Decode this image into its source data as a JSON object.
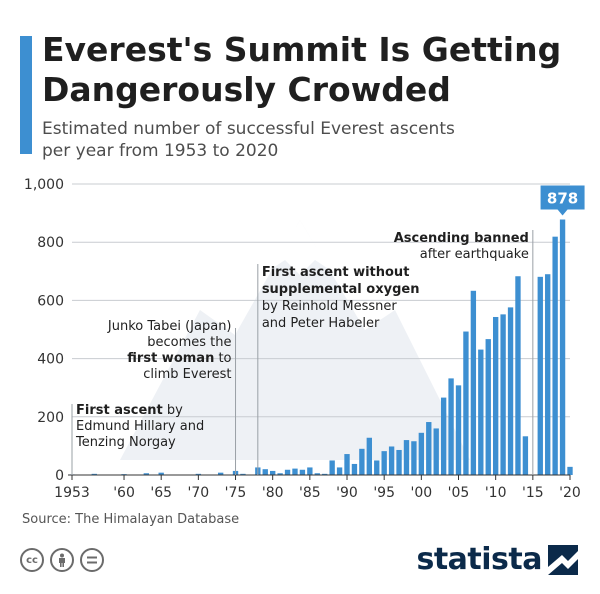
{
  "title_lines": [
    "Everest's Summit Is Getting",
    "Dangerously Crowded"
  ],
  "subtitle_lines": [
    "Estimated number of successful Everest ascents",
    "per year from 1953 to 2020"
  ],
  "source": "Source: The Himalayan Database",
  "brand": "statista",
  "license_icons": [
    "cc-icon",
    "person-icon",
    "equals-icon"
  ],
  "colors": {
    "bar": "#3d8fd1",
    "grid": "#c8ccd1",
    "text": "#1a1a1a",
    "brand": "#0b2a4a"
  },
  "chart_data": {
    "type": "bar",
    "x": [
      1953,
      1954,
      1955,
      1956,
      1957,
      1958,
      1959,
      1960,
      1961,
      1962,
      1963,
      1964,
      1965,
      1966,
      1967,
      1968,
      1969,
      1970,
      1971,
      1972,
      1973,
      1974,
      1975,
      1976,
      1977,
      1978,
      1979,
      1980,
      1981,
      1982,
      1983,
      1984,
      1985,
      1986,
      1987,
      1988,
      1989,
      1990,
      1991,
      1992,
      1993,
      1994,
      1995,
      1996,
      1997,
      1998,
      1999,
      2000,
      2001,
      2002,
      2003,
      2004,
      2005,
      2006,
      2007,
      2008,
      2009,
      2010,
      2011,
      2012,
      2013,
      2014,
      2015,
      2016,
      2017,
      2018,
      2019,
      2020
    ],
    "values": [
      2,
      0,
      0,
      4,
      0,
      0,
      0,
      3,
      0,
      0,
      6,
      0,
      8,
      0,
      0,
      0,
      0,
      4,
      0,
      0,
      8,
      0,
      14,
      4,
      0,
      26,
      20,
      14,
      6,
      18,
      22,
      18,
      26,
      6,
      4,
      50,
      26,
      72,
      38,
      90,
      128,
      50,
      82,
      98,
      86,
      120,
      116,
      145,
      182,
      160,
      266,
      332,
      308,
      493,
      633,
      431,
      467,
      543,
      552,
      576,
      683,
      133,
      0,
      681,
      690,
      819,
      878,
      28
    ],
    "x_tick_labels": [
      "1953",
      "'60",
      "'65",
      "'70",
      "'75",
      "'80",
      "'85",
      "'90",
      "'95",
      "'00",
      "'05",
      "'10",
      "'15",
      "'20"
    ],
    "x_tick_years": [
      1953,
      1960,
      1965,
      1970,
      1975,
      1980,
      1985,
      1990,
      1995,
      2000,
      2005,
      2010,
      2015,
      2020
    ],
    "y_tick_labels": [
      "0",
      "200",
      "400",
      "600",
      "800",
      "1,000"
    ],
    "ylim": [
      0,
      1000
    ],
    "highlight": {
      "year": 2019,
      "label": "878"
    },
    "annotations": [
      {
        "id": "first-ascent",
        "year": 1953,
        "bold": "First ascent",
        "rest": [
          " by",
          "Edmund Hillary and",
          "Tenzing Norgay"
        ]
      },
      {
        "id": "junko-tabei",
        "year": 1975,
        "lines": [
          "Junko Tabei (Japan)",
          "becomes the"
        ],
        "bold": "first woman",
        "bold_suffix": " to",
        "after": [
          "climb Everest"
        ]
      },
      {
        "id": "messner",
        "year": 1978,
        "bold_lines": [
          "First ascent without",
          "supplemental oxygen"
        ],
        "lines": [
          "by Reinhold Messner",
          "and Peter Habeler"
        ]
      },
      {
        "id": "banned",
        "year": 2015,
        "bold_lines": [
          "Ascending banned"
        ],
        "lines": [
          "after earthquake"
        ]
      }
    ]
  }
}
